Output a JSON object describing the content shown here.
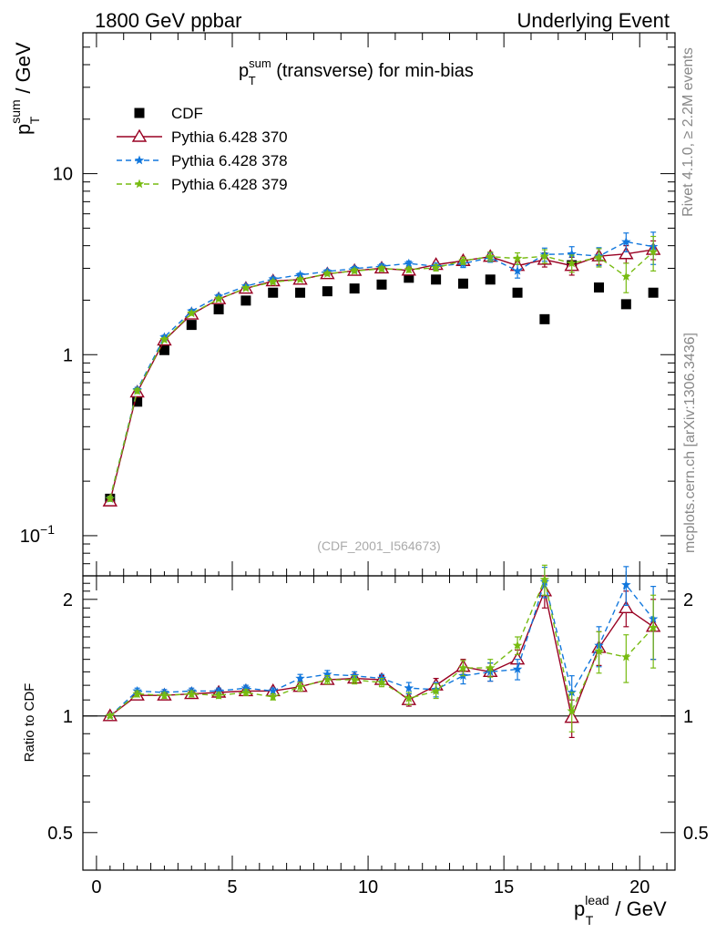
{
  "header": {
    "left": "1800 GeV ppbar",
    "right": "Underlying Event"
  },
  "side": {
    "rivet": "Rivet 4.1.0, ≥ 2.2M events",
    "mcplots": "mcplots.cern.ch [arXiv:1306.3436]"
  },
  "chart_data": [
    {
      "type": "scatter",
      "panel": "main",
      "title_main": "p",
      "title_sup": "sum",
      "title_sub": "T",
      "title_rest": " (transverse) for min-bias",
      "ylabel_main": "p",
      "ylabel_sup": "sum",
      "ylabel_sub": "T",
      "ylabel_rest": " / GeV",
      "yscale": "log",
      "ylim": [
        0.06,
        60
      ],
      "xlim": [
        -0.5,
        21.3
      ],
      "yticks": [
        {
          "v": 0.1,
          "base": "10",
          "exp": "−1"
        },
        {
          "v": 1,
          "base": "1",
          "exp": ""
        },
        {
          "v": 10,
          "base": "10",
          "exp": ""
        }
      ],
      "watermark": "(CDF_2001_I564673)",
      "x": [
        0.5,
        1.5,
        2.5,
        3.5,
        4.5,
        5.5,
        6.5,
        7.5,
        8.5,
        9.5,
        10.5,
        11.5,
        12.5,
        13.5,
        14.5,
        15.5,
        16.5,
        17.5,
        18.5,
        19.5,
        20.5
      ],
      "series": [
        {
          "name": "CDF",
          "marker": "square",
          "color": "#000000",
          "dash": "none",
          "values": [
            0.16,
            0.55,
            1.06,
            1.46,
            1.78,
            1.99,
            2.2,
            2.2,
            2.24,
            2.32,
            2.44,
            2.66,
            2.6,
            2.47,
            2.6,
            2.2,
            1.57,
            3.12,
            2.35,
            1.9,
            2.2
          ]
        },
        {
          "name": "Pythia 6.428 370",
          "marker": "triangle",
          "color": "#990022",
          "dash": "none",
          "values": [
            0.155,
            0.62,
            1.2,
            1.67,
            2.03,
            2.32,
            2.55,
            2.6,
            2.79,
            2.91,
            3.0,
            2.92,
            3.14,
            3.3,
            3.48,
            3.1,
            3.35,
            3.1,
            3.5,
            3.6,
            3.8
          ],
          "errors": [
            0.005,
            0.02,
            0.03,
            0.04,
            0.05,
            0.05,
            0.06,
            0.06,
            0.07,
            0.08,
            0.09,
            0.1,
            0.12,
            0.15,
            0.2,
            0.2,
            0.3,
            0.35,
            0.35,
            0.4,
            0.45
          ]
        },
        {
          "name": "Pythia 6.428 378",
          "marker": "star",
          "color": "#1177dd",
          "dash": "6,4",
          "values": [
            0.16,
            0.64,
            1.25,
            1.74,
            2.1,
            2.39,
            2.62,
            2.76,
            2.88,
            2.99,
            3.08,
            3.19,
            3.08,
            3.18,
            3.44,
            2.9,
            3.58,
            3.6,
            3.5,
            4.2,
            3.95
          ],
          "errors": [
            0.005,
            0.02,
            0.03,
            0.04,
            0.05,
            0.05,
            0.06,
            0.06,
            0.07,
            0.08,
            0.09,
            0.1,
            0.12,
            0.15,
            0.2,
            0.25,
            0.3,
            0.35,
            0.4,
            0.5,
            0.8
          ]
        },
        {
          "name": "Pythia 6.428 379",
          "marker": "star",
          "color": "#77bb11",
          "dash": "6,4",
          "values": [
            0.16,
            0.63,
            1.21,
            1.69,
            2.03,
            2.33,
            2.52,
            2.6,
            2.8,
            2.9,
            2.98,
            2.95,
            3.02,
            3.3,
            3.48,
            3.4,
            3.5,
            3.2,
            3.45,
            2.7,
            3.7
          ],
          "errors": [
            0.005,
            0.02,
            0.03,
            0.04,
            0.05,
            0.05,
            0.06,
            0.06,
            0.07,
            0.08,
            0.09,
            0.1,
            0.12,
            0.15,
            0.2,
            0.25,
            0.3,
            0.35,
            0.4,
            0.5,
            0.8
          ]
        }
      ]
    },
    {
      "type": "line",
      "panel": "ratio",
      "ylabel": "Ratio to CDF",
      "yscale": "log",
      "ylim": [
        0.4,
        2.3
      ],
      "xlim": [
        -0.5,
        21.3
      ],
      "xticks": [
        0,
        5,
        10,
        15,
        20
      ],
      "yticks": [
        {
          "v": 0.5,
          "label": "0.5"
        },
        {
          "v": 1,
          "label": "1"
        },
        {
          "v": 2,
          "label": "2"
        }
      ],
      "xlabel_main": "p",
      "xlabel_sup": "lead",
      "xlabel_sub": "T",
      "xlabel_rest": " / GeV",
      "x": [
        0.5,
        1.5,
        2.5,
        3.5,
        4.5,
        5.5,
        6.5,
        7.5,
        8.5,
        9.5,
        10.5,
        11.5,
        12.5,
        13.5,
        14.5,
        15.5,
        16.5,
        17.5,
        18.5,
        19.5,
        20.5
      ],
      "series": [
        {
          "name": "Pythia 6.428 370",
          "marker": "triangle",
          "color": "#990022",
          "dash": "none",
          "values": [
            1.0,
            1.13,
            1.13,
            1.14,
            1.15,
            1.16,
            1.16,
            1.19,
            1.24,
            1.25,
            1.24,
            1.1,
            1.2,
            1.34,
            1.3,
            1.4,
            2.1,
            0.99,
            1.5,
            1.9,
            1.7
          ],
          "errors": [
            0.01,
            0.02,
            0.02,
            0.02,
            0.02,
            0.02,
            0.02,
            0.03,
            0.03,
            0.03,
            0.03,
            0.04,
            0.05,
            0.06,
            0.07,
            0.08,
            0.2,
            0.11,
            0.15,
            0.2,
            0.3
          ]
        },
        {
          "name": "Pythia 6.428 378",
          "marker": "star",
          "color": "#1177dd",
          "dash": "6,4",
          "values": [
            1.0,
            1.16,
            1.15,
            1.16,
            1.16,
            1.18,
            1.16,
            1.25,
            1.28,
            1.27,
            1.25,
            1.18,
            1.17,
            1.27,
            1.3,
            1.32,
            2.22,
            1.15,
            1.52,
            2.18,
            1.78
          ],
          "errors": [
            0.01,
            0.02,
            0.02,
            0.02,
            0.02,
            0.02,
            0.02,
            0.03,
            0.03,
            0.03,
            0.03,
            0.04,
            0.05,
            0.06,
            0.07,
            0.08,
            0.2,
            0.12,
            0.18,
            0.25,
            0.38
          ]
        },
        {
          "name": "Pythia 6.428 379",
          "marker": "star",
          "color": "#77bb11",
          "dash": "6,4",
          "values": [
            1.0,
            1.14,
            1.13,
            1.14,
            1.13,
            1.15,
            1.12,
            1.19,
            1.24,
            1.24,
            1.22,
            1.11,
            1.16,
            1.33,
            1.33,
            1.52,
            2.25,
            1.03,
            1.47,
            1.42,
            1.69
          ],
          "errors": [
            0.01,
            0.02,
            0.02,
            0.02,
            0.02,
            0.02,
            0.02,
            0.03,
            0.03,
            0.03,
            0.03,
            0.04,
            0.05,
            0.06,
            0.07,
            0.08,
            0.2,
            0.12,
            0.18,
            0.2,
            0.36
          ]
        }
      ]
    }
  ]
}
